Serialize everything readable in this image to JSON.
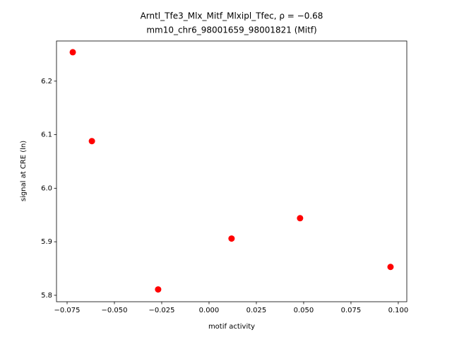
{
  "chart_data": {
    "type": "scatter",
    "title": "Arntl_Tfe3_Mlx_Mitf_Mlxipl_Tfec, ρ = −0.68",
    "subtitle": "mm10_chr6_98001659_98001821 (Mitf)",
    "xlabel": "motif activity",
    "ylabel": "signal at CRE (ln)",
    "color": "#ff0000",
    "x": [
      -0.072,
      -0.0619,
      -0.0269,
      0.0119,
      0.0481,
      0.0959
    ],
    "values": [
      6.254,
      6.088,
      5.811,
      5.906,
      5.944,
      5.853
    ],
    "xlim": [
      -0.0806,
      0.1045
    ],
    "ylim": [
      5.788,
      6.275
    ],
    "xticks": [
      {
        "value": -0.075,
        "label": "−0.075"
      },
      {
        "value": -0.05,
        "label": "−0.050"
      },
      {
        "value": -0.025,
        "label": "−0.025"
      },
      {
        "value": 0,
        "label": "0.000"
      },
      0.025,
      {
        "value": 0.05,
        "label": "0.050"
      },
      0.075,
      {
        "value": 0.1,
        "label": "0.100"
      }
    ],
    "yticks": [
      5.8,
      5.9,
      {
        "value": 6.0,
        "label": "6.0"
      },
      6.1,
      6.2
    ]
  }
}
